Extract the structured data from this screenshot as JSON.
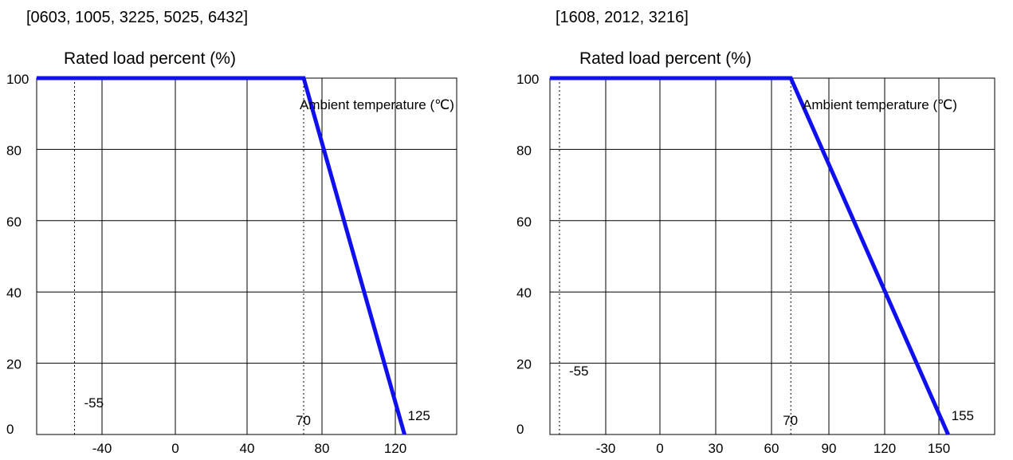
{
  "chart_data": [
    {
      "type": "line",
      "title": "[0603, 1005, 3225, 5025, 6432]",
      "ylabel": "Rated load percent (%)",
      "xlabel": "Ambient temperature (℃)",
      "x_ticks": [
        "-40",
        "0",
        "40",
        "80",
        "120"
      ],
      "y_ticks": [
        "0",
        "20",
        "40",
        "60",
        "80",
        "100"
      ],
      "xlim": [
        -65,
        145
      ],
      "ylim": [
        0,
        100
      ],
      "grid": true,
      "series": [
        {
          "x": [
            -65,
            70,
            125
          ],
          "y": [
            100,
            100,
            0
          ]
        }
      ],
      "annotations": [
        {
          "text": "-55",
          "x": -55,
          "y": 8
        },
        {
          "text": "70",
          "x": 70,
          "y": 3
        },
        {
          "text": "125",
          "x": 125,
          "y": 4
        }
      ],
      "reference_lines": [
        -55,
        70
      ],
      "line_color": "#1010ee"
    },
    {
      "type": "line",
      "title": "[1608, 2012, 3216]",
      "ylabel": "Rated load percent (%)",
      "xlabel": "Ambient temperature (℃)",
      "x_ticks": [
        "-30",
        "0",
        "30",
        "60",
        "90",
        "120",
        "150"
      ],
      "y_ticks": [
        "0",
        "20",
        "40",
        "60",
        "80",
        "100"
      ],
      "xlim": [
        -60,
        165
      ],
      "ylim": [
        0,
        100
      ],
      "grid": true,
      "series": [
        {
          "x": [
            -60,
            70,
            155
          ],
          "y": [
            100,
            100,
            0
          ]
        }
      ],
      "annotations": [
        {
          "text": "-55",
          "x": -55,
          "y": 17
        },
        {
          "text": "70",
          "x": 70,
          "y": 3
        },
        {
          "text": "155",
          "x": 155,
          "y": 4
        }
      ],
      "reference_lines": [
        -55,
        70
      ],
      "line_color": "#1010ee"
    }
  ]
}
